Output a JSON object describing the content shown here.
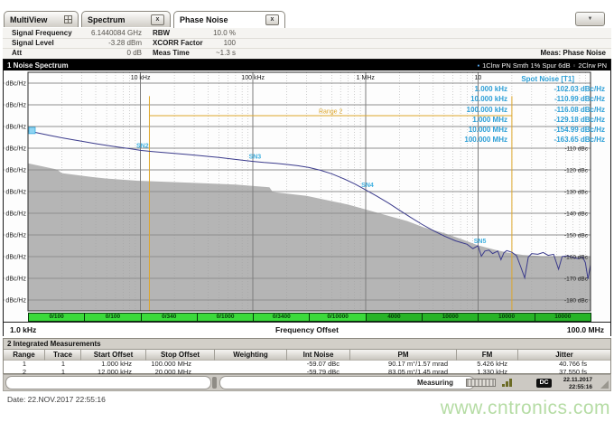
{
  "tabs": {
    "multiview": "MultiView",
    "spectrum": "Spectrum",
    "phase_noise": "Phase Noise",
    "close_label": "x"
  },
  "icons": {
    "dropdown_arrow": "▼",
    "trace1_bullet": "▪",
    "trace2_bullet": "▫"
  },
  "header": {
    "left": [
      {
        "label": "Signal Frequency",
        "value": "6.1440084 GHz"
      },
      {
        "label": "Signal Level",
        "value": "-3.28 dBm"
      },
      {
        "label": "Att",
        "value": "0 dB"
      }
    ],
    "right": [
      {
        "label": "RBW",
        "value": "10.0 %"
      },
      {
        "label": "XCORR Factor",
        "value": "100"
      },
      {
        "label": "Meas Time",
        "value": "~1.3 s"
      }
    ],
    "meas_label": "Meas: Phase Noise"
  },
  "noise_window": {
    "title": "1 Noise Spectrum",
    "trace1_legend": "1Clrw PN Smth 1% Spur 6dB",
    "trace2_legend": "2Clrw PN",
    "xlabel": "Frequency Offset",
    "x_start": "1.0 kHz",
    "x_stop": "100.0 MHz"
  },
  "spot_noise": {
    "title": "Spot Noise [T1]",
    "rows": [
      [
        "1.000 kHz",
        "-102.03 dBc/Hz"
      ],
      [
        "10.000 kHz",
        "-110.99 dBc/Hz"
      ],
      [
        "100.000 kHz",
        "-116.08 dBc/Hz"
      ],
      [
        "1.000 MHz",
        "-129.18 dBc/Hz"
      ],
      [
        "10.000 MHz",
        "-154.99 dBc/Hz"
      ],
      [
        "100.000 MHz",
        "-163.65 dBc/Hz"
      ]
    ]
  },
  "chart_data": {
    "type": "line",
    "title": "1 Noise Spectrum",
    "xlabel": "Frequency Offset",
    "ylabel": "dBc/Hz",
    "x_scale": "log",
    "x_range_hz": [
      1000,
      100000000
    ],
    "y_range_dbchz": [
      -185,
      -75
    ],
    "x_ticks_top": [
      {
        "hz": 10000,
        "label": "10 kHz"
      },
      {
        "hz": 100000,
        "label": "100 kHz"
      },
      {
        "hz": 1000000,
        "label": "1 MHz"
      },
      {
        "hz": 10000000,
        "label": "10"
      }
    ],
    "y_ticks_left": [
      {
        "value": -80,
        "label": "-80 dBc/Hz"
      },
      {
        "value": -90,
        "label": "-90 dBc/Hz"
      },
      {
        "value": -100,
        "label": "-100 dBc/Hz"
      },
      {
        "value": -110,
        "label": "-110 dBc/Hz"
      },
      {
        "value": -120,
        "label": "-120 dBc/Hz"
      },
      {
        "value": -130,
        "label": "-130 dBc/Hz"
      },
      {
        "value": -140,
        "label": "-140 dBc/Hz"
      },
      {
        "value": -150,
        "label": "-150 dBc/Hz"
      },
      {
        "value": -160,
        "label": "-160 dBc/Hz"
      },
      {
        "value": -170,
        "label": "-170 dBc/Hz"
      },
      {
        "value": -180,
        "label": "-180 dBc/Hz"
      }
    ],
    "y_ticks_right": [
      {
        "value": -110,
        "label": "-110 dBc"
      },
      {
        "value": -120,
        "label": "-120 dBc"
      },
      {
        "value": -130,
        "label": "-130 dBc"
      },
      {
        "value": -140,
        "label": "-140 dBc"
      },
      {
        "value": -150,
        "label": "-150 dBc"
      },
      {
        "value": -160,
        "label": "-160 dBc"
      },
      {
        "value": -170,
        "label": "-170 dBc"
      },
      {
        "value": -180,
        "label": "-180 dBc"
      }
    ],
    "series": [
      {
        "name": "1Clrw PN Smth 1% Spur 6dB",
        "color": "#3b3b8c",
        "points": [
          [
            1000,
            -102.0
          ],
          [
            1250,
            -103.1
          ],
          [
            1600,
            -104.2
          ],
          [
            2000,
            -105.2
          ],
          [
            2500,
            -106.1
          ],
          [
            3150,
            -107.0
          ],
          [
            4000,
            -107.9
          ],
          [
            5000,
            -108.7
          ],
          [
            6300,
            -109.5
          ],
          [
            8000,
            -110.2
          ],
          [
            10000,
            -111.0
          ],
          [
            12500,
            -111.5
          ],
          [
            16000,
            -112.0
          ],
          [
            20000,
            -112.4
          ],
          [
            25000,
            -112.8
          ],
          [
            31500,
            -113.3
          ],
          [
            40000,
            -113.8
          ],
          [
            50000,
            -114.3
          ],
          [
            63000,
            -114.9
          ],
          [
            80000,
            -115.5
          ],
          [
            100000,
            -116.1
          ],
          [
            125000,
            -116.6
          ],
          [
            160000,
            -117.0
          ],
          [
            200000,
            -117.5
          ],
          [
            250000,
            -118.1
          ],
          [
            315000,
            -118.9
          ],
          [
            400000,
            -120.2
          ],
          [
            500000,
            -121.8
          ],
          [
            630000,
            -123.9
          ],
          [
            800000,
            -126.4
          ],
          [
            1000000,
            -129.2
          ],
          [
            1250000,
            -132.0
          ],
          [
            1600000,
            -135.3
          ],
          [
            2000000,
            -138.6
          ],
          [
            2500000,
            -141.8
          ],
          [
            3150000,
            -145.0
          ],
          [
            4000000,
            -148.0
          ],
          [
            5000000,
            -150.5
          ],
          [
            6300000,
            -152.7
          ],
          [
            8000000,
            -154.3
          ],
          [
            9000000,
            -156.3
          ],
          [
            10000000,
            -155.0
          ],
          [
            10700000,
            -159.8
          ],
          [
            11500000,
            -157.4
          ],
          [
            12500000,
            -157.0
          ],
          [
            13500000,
            -158.6
          ],
          [
            15000000,
            -157.4
          ],
          [
            16000000,
            -161.4
          ],
          [
            17000000,
            -158.2
          ],
          [
            18000000,
            -157.2
          ],
          [
            20000000,
            -158.0
          ],
          [
            22000000,
            -159.6
          ],
          [
            24000000,
            -164.8
          ],
          [
            26000000,
            -169.8
          ],
          [
            28000000,
            -160.2
          ],
          [
            30000000,
            -158.6
          ],
          [
            34000000,
            -158.9
          ],
          [
            38000000,
            -158.1
          ],
          [
            42000000,
            -159.4
          ],
          [
            47000000,
            -158.9
          ],
          [
            52000000,
            -165.8
          ],
          [
            56000000,
            -159.9
          ],
          [
            63000000,
            -159.6
          ],
          [
            70000000,
            -160.4
          ],
          [
            78000000,
            -160.9
          ],
          [
            85000000,
            -160.1
          ],
          [
            90000000,
            -162.8
          ],
          [
            95000000,
            -170.3
          ],
          [
            100000000,
            -163.7
          ]
        ]
      }
    ],
    "noise_floor_area": {
      "color": "#b5b5b5",
      "points": [
        [
          1000,
          -117.0
        ],
        [
          1800,
          -119.8
        ],
        [
          2000,
          -121.5
        ],
        [
          3700,
          -123.3
        ],
        [
          5000,
          -124.0
        ],
        [
          9400,
          -125.0
        ],
        [
          30000,
          -126.0
        ],
        [
          70000,
          -126.8
        ],
        [
          140000,
          -128.0
        ],
        [
          150000,
          -130.2
        ],
        [
          300000,
          -132.0
        ],
        [
          450000,
          -133.9
        ],
        [
          700000,
          -136.0
        ],
        [
          1000000,
          -138.2
        ],
        [
          1600000,
          -141.2
        ],
        [
          2350000,
          -143.6
        ],
        [
          3300000,
          -146.5
        ],
        [
          4900000,
          -149.0
        ],
        [
          7000000,
          -151.8
        ],
        [
          10000000,
          -154.8
        ],
        [
          14000000,
          -156.8
        ],
        [
          17800000,
          -158.0
        ],
        [
          25000000,
          -159.2
        ],
        [
          37000000,
          -159.8
        ],
        [
          60000000,
          -160.0
        ],
        [
          100000000,
          -160.2
        ]
      ]
    },
    "range_marker": {
      "label": "Range 2",
      "start_hz": 12000,
      "stop_hz": 20000000,
      "level_db": -95,
      "top_db": -86,
      "color": "#dda62b"
    },
    "spot_markers": [
      {
        "label": "SN1",
        "hz": 1000,
        "db": -102.03
      },
      {
        "label": "SN2",
        "hz": 10000,
        "db": -110.99
      },
      {
        "label": "SN3",
        "hz": 100000,
        "db": -116.08
      },
      {
        "label": "SN4",
        "hz": 1000000,
        "db": -129.18
      },
      {
        "label": "SN5",
        "hz": 10000000,
        "db": -154.99
      }
    ]
  },
  "sweep_bar": {
    "segments": [
      {
        "label": "0/100",
        "state": "pending"
      },
      {
        "label": "0/100",
        "state": "pending"
      },
      {
        "label": "0/340",
        "state": "pending"
      },
      {
        "label": "0/1000",
        "state": "pending"
      },
      {
        "label": "0/3400",
        "state": "pending"
      },
      {
        "label": "0/10000",
        "state": "pending"
      },
      {
        "label": "4000",
        "state": "done"
      },
      {
        "label": "10000",
        "state": "done"
      },
      {
        "label": "10000",
        "state": "done"
      },
      {
        "label": "10000",
        "state": "done"
      }
    ]
  },
  "integrated": {
    "title": "2 Integrated Measurements",
    "headers": [
      "Range",
      "Trace",
      "Start Offset",
      "Stop Offset",
      "Weighting",
      "Int Noise",
      "PM",
      "FM",
      "Jitter"
    ],
    "rows": [
      [
        "1",
        "1",
        "1.000 kHz",
        "100.000 MHz",
        "",
        "-59.07 dBc",
        "90.17 m°/1.57 mrad",
        "5.426 kHz",
        "40.766 fs"
      ],
      [
        "2",
        "1",
        "12.000 kHz",
        "20.000 MHz",
        "",
        "-59.79 dBc",
        "83.05 m°/1.45 mrad",
        "1.330 kHz",
        "37.550 fs"
      ]
    ]
  },
  "status_bar": {
    "measuring_label": "Measuring",
    "dc_label": "DC",
    "date": "22.11.2017",
    "time": "22:55:16"
  },
  "footer": {
    "date_line": "Date: 22.NOV.2017  22:55:16",
    "watermark": "www.cntronics.com"
  },
  "colors": {
    "trace": "#3b3b8c",
    "spot_noise_text": "#2d9fd6",
    "range_marker": "#dda62b",
    "sweep_pending": "#3bdb3b",
    "sweep_done": "#27b427",
    "noise_floor_fill": "#b5b5b5"
  }
}
